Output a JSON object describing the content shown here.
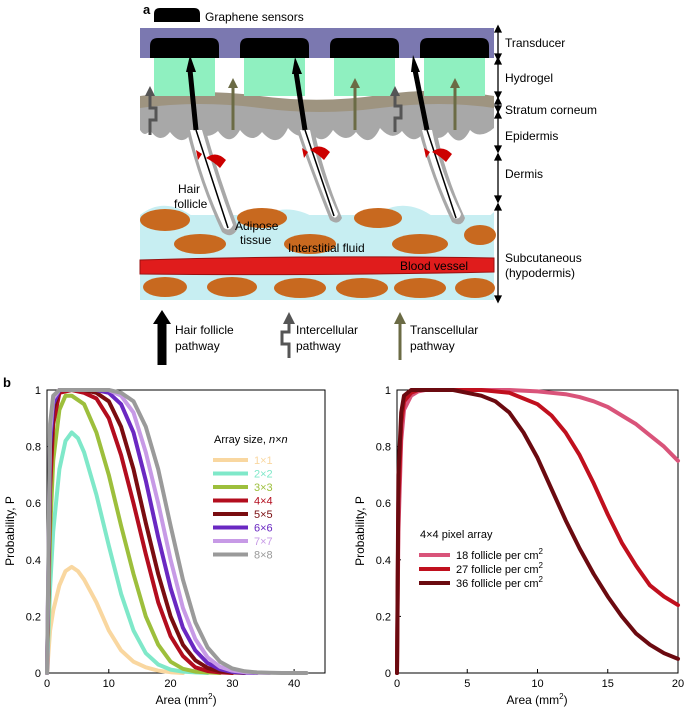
{
  "panel_a": {
    "letter": "a",
    "legend_sensor": "Graphene sensors",
    "layers": {
      "transducer": "Transducer",
      "hydrogel": "Hydrogel",
      "stratum": "Stratum corneum",
      "epidermis": "Epidermis",
      "dermis": "Dermis",
      "subcut1": "Subcutaneous",
      "subcut2": "(hypodermis)"
    },
    "inner": {
      "hair1": "Hair",
      "hair2": "follicle",
      "adipose1": "Adipose",
      "adipose2": "tissue",
      "interstitial": "Interstitial fluid",
      "blood": "Blood vessel"
    },
    "pathways": {
      "hair1": "Hair follicle",
      "hair2": "pathway",
      "inter1": "Intercellular",
      "inter2": "pathway",
      "trans1": "Transcellular",
      "trans2": "pathway"
    },
    "colors": {
      "transducer": "#7b78b0",
      "hydrogel": "#8ff0c0",
      "stratum": "#9e9480",
      "epidermis": "#a8a8a8",
      "interstitial": "#c7eef2",
      "adipose": "#c8691f",
      "blood": "#e01c1c",
      "hair_arrow": "#000000",
      "inter_arrow": "#555555",
      "trans_arrow": "#6b6b45"
    }
  },
  "panel_b": {
    "letter": "b",
    "left_legend_title_prefix": "Array size, ",
    "left_legend_title_var": "n×n",
    "right_legend_title": "4×4 pixel array",
    "right_legend_suffix": " follicle per cm",
    "right_legend_sup": "2"
  },
  "chart_data": [
    {
      "type": "line",
      "xlabel": "Area (mm",
      "xlabel_sup": "2",
      "xlabel_end": ")",
      "ylabel": "Probability, P",
      "xlim": [
        0,
        45
      ],
      "ylim": [
        0,
        1
      ],
      "xticks": [
        "0",
        "10",
        "20",
        "30",
        "40"
      ],
      "yticks": [
        "0",
        "0.2",
        "0.4",
        "0.6",
        "0.8",
        "1"
      ],
      "series": [
        {
          "name": "1×1",
          "color": "#f9d7a0",
          "x": [
            0,
            0.5,
            1,
            2,
            3,
            4,
            5,
            6,
            8,
            10,
            12,
            14,
            16,
            18,
            20,
            22
          ],
          "y": [
            0,
            0.15,
            0.22,
            0.31,
            0.36,
            0.375,
            0.36,
            0.33,
            0.25,
            0.15,
            0.08,
            0.04,
            0.02,
            0.008,
            0.003,
            0
          ]
        },
        {
          "name": "2×2",
          "color": "#7fe8c9",
          "x": [
            0,
            0.5,
            1,
            2,
            3,
            4,
            5,
            6,
            8,
            10,
            12,
            14,
            16,
            18,
            20,
            22,
            24,
            26
          ],
          "y": [
            0,
            0.3,
            0.5,
            0.72,
            0.82,
            0.85,
            0.83,
            0.78,
            0.63,
            0.45,
            0.28,
            0.15,
            0.07,
            0.03,
            0.012,
            0.005,
            0.002,
            0
          ]
        },
        {
          "name": "3×3",
          "color": "#9dbf3c",
          "x": [
            0,
            0.5,
            1,
            2,
            3,
            4,
            6,
            8,
            10,
            12,
            14,
            16,
            18,
            20,
            22,
            24,
            26,
            28
          ],
          "y": [
            0,
            0.5,
            0.75,
            0.93,
            0.98,
            0.98,
            0.95,
            0.85,
            0.7,
            0.52,
            0.35,
            0.2,
            0.1,
            0.04,
            0.015,
            0.005,
            0.002,
            0
          ]
        },
        {
          "name": "4×4",
          "color": "#b30d1e",
          "x": [
            0,
            0.5,
            1,
            2,
            4,
            6,
            8,
            10,
            12,
            14,
            16,
            18,
            20,
            22,
            24,
            26,
            28,
            30
          ],
          "y": [
            0,
            0.65,
            0.88,
            0.99,
            1,
            0.99,
            0.97,
            0.9,
            0.77,
            0.6,
            0.42,
            0.25,
            0.13,
            0.06,
            0.02,
            0.007,
            0.002,
            0
          ]
        },
        {
          "name": "5×5",
          "color": "#7a0d10",
          "x": [
            0,
            0.5,
            1,
            2,
            4,
            6,
            8,
            10,
            12,
            14,
            16,
            18,
            20,
            22,
            24,
            26,
            28,
            30,
            32
          ],
          "y": [
            0,
            0.75,
            0.93,
            1,
            1,
            1,
            0.99,
            0.96,
            0.87,
            0.72,
            0.53,
            0.35,
            0.2,
            0.1,
            0.045,
            0.018,
            0.006,
            0.002,
            0
          ]
        },
        {
          "name": "6×6",
          "color": "#6a28c2",
          "x": [
            0,
            0.5,
            1,
            2,
            4,
            6,
            8,
            10,
            12,
            14,
            16,
            18,
            20,
            22,
            24,
            26,
            28,
            30,
            32,
            34
          ],
          "y": [
            0,
            0.8,
            0.95,
            1,
            1,
            1,
            1,
            0.99,
            0.95,
            0.85,
            0.68,
            0.48,
            0.3,
            0.16,
            0.08,
            0.035,
            0.013,
            0.004,
            0.001,
            0
          ]
        },
        {
          "name": "7×7",
          "color": "#c79ae6",
          "x": [
            0,
            0.5,
            1,
            2,
            4,
            6,
            8,
            10,
            12,
            14,
            16,
            18,
            20,
            22,
            24,
            26,
            28,
            30,
            32,
            34,
            36
          ],
          "y": [
            0,
            0.85,
            0.97,
            1,
            1,
            1,
            1,
            1,
            0.98,
            0.92,
            0.78,
            0.6,
            0.4,
            0.23,
            0.12,
            0.055,
            0.022,
            0.008,
            0.003,
            0.001,
            0
          ]
        },
        {
          "name": "8×8",
          "color": "#9a9a9a",
          "x": [
            0,
            0.5,
            1,
            2,
            4,
            6,
            8,
            10,
            12,
            14,
            16,
            18,
            20,
            22,
            24,
            26,
            28,
            30,
            32,
            34,
            36,
            38,
            40,
            42
          ],
          "y": [
            0,
            0.88,
            0.98,
            1,
            1,
            1,
            1,
            1,
            0.99,
            0.96,
            0.87,
            0.72,
            0.52,
            0.33,
            0.18,
            0.09,
            0.04,
            0.016,
            0.006,
            0.002,
            0.001,
            0,
            0,
            0
          ]
        }
      ]
    },
    {
      "type": "line",
      "xlabel": "Area (mm",
      "xlabel_sup": "2",
      "xlabel_end": ")",
      "ylabel": "Probability, P",
      "xlim": [
        0,
        20
      ],
      "ylim": [
        0,
        1
      ],
      "xticks": [
        "0",
        "5",
        "10",
        "15",
        "20"
      ],
      "yticks": [
        "0",
        "0.2",
        "0.4",
        "0.6",
        "0.8",
        "1"
      ],
      "series": [
        {
          "name": "18",
          "color": "#d9547a",
          "x": [
            0,
            0.1,
            0.3,
            0.5,
            1,
            1.5,
            2,
            4,
            6,
            8,
            10,
            12,
            13,
            14,
            15,
            16,
            17,
            18,
            19,
            20
          ],
          "y": [
            0,
            0.5,
            0.82,
            0.93,
            0.98,
            0.995,
            1,
            1,
            1,
            1,
            0.995,
            0.985,
            0.975,
            0.96,
            0.94,
            0.91,
            0.88,
            0.84,
            0.8,
            0.75
          ]
        },
        {
          "name": "27",
          "color": "#c0101e",
          "x": [
            0,
            0.1,
            0.3,
            0.5,
            1,
            1.5,
            2,
            4,
            6,
            8,
            9,
            10,
            11,
            12,
            13,
            14,
            15,
            16,
            17,
            18,
            19,
            20
          ],
          "y": [
            0,
            0.6,
            0.88,
            0.96,
            0.99,
            1,
            1,
            1,
            1,
            0.99,
            0.97,
            0.95,
            0.91,
            0.85,
            0.77,
            0.67,
            0.56,
            0.46,
            0.38,
            0.31,
            0.27,
            0.24
          ]
        },
        {
          "name": "36",
          "color": "#6b0a10",
          "x": [
            0,
            0.1,
            0.3,
            0.5,
            1,
            1.5,
            2,
            4,
            6,
            7,
            8,
            9,
            10,
            11,
            12,
            13,
            14,
            15,
            16,
            17,
            18,
            19,
            20
          ],
          "y": [
            0,
            0.7,
            0.92,
            0.98,
            1,
            1,
            1,
            1,
            0.98,
            0.96,
            0.92,
            0.85,
            0.76,
            0.65,
            0.54,
            0.44,
            0.35,
            0.27,
            0.2,
            0.14,
            0.1,
            0.07,
            0.05
          ]
        }
      ]
    }
  ]
}
